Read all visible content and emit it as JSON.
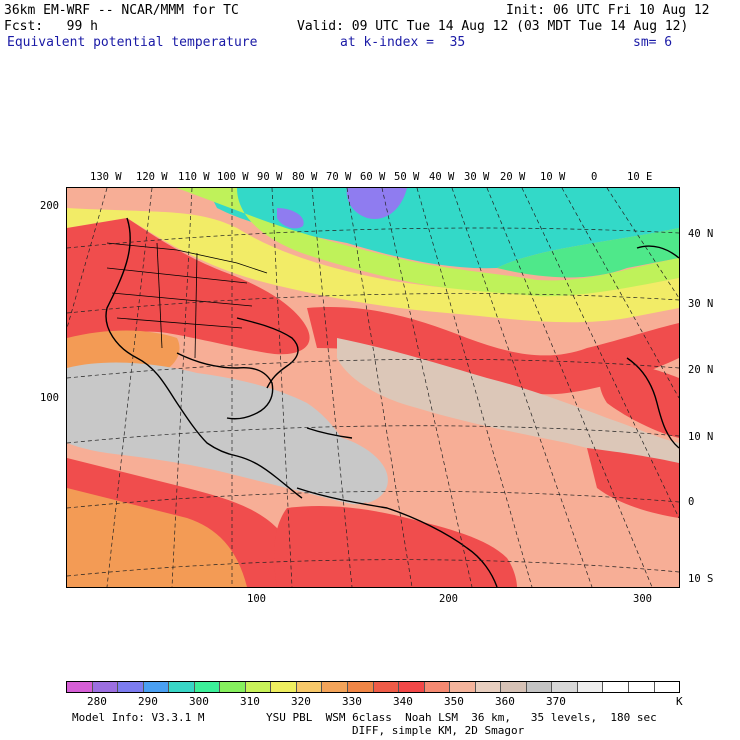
{
  "header": {
    "line1_left": "36km EM-WRF -- NCAR/MMM for TC",
    "line1_right": "Init: 06 UTC Fri 10 Aug 12",
    "line2_left": "Fcst:   99 h",
    "line2_right": "Valid: 09 UTC Tue 14 Aug 12 (03 MDT Tue 14 Aug 12)",
    "field_name": "Equivalent potential temperature",
    "level": "at k-index =  35",
    "smoothing": "sm= 6"
  },
  "map": {
    "top_longitude_labels": [
      "130 W",
      "120 W",
      "110 W",
      "100 W",
      "90 W",
      "80 W",
      "70 W",
      "60 W",
      "50 W",
      "40 W",
      "30 W",
      "20 W",
      "10 W",
      "0",
      "10 E"
    ],
    "right_latitude_labels": [
      "40 N",
      "30 N",
      "20 N",
      "10 N",
      "0",
      "10 S"
    ],
    "left_grid_labels": [
      "200",
      "100"
    ],
    "bottom_grid_labels": [
      "100",
      "200",
      "300"
    ],
    "colors": {
      "cold_pool": "#8f7cf0",
      "cool": "#33d9c8",
      "mild": "#4fe88a",
      "green_yellow": "#bff25a",
      "yellow": "#f2ec67",
      "orange": "#f39b55",
      "red": "#f04d4d",
      "salmon": "#f7ae96",
      "tan": "#dcc7b8",
      "gray": "#c8c8c8",
      "coast": "#000000"
    }
  },
  "legend": {
    "labels": [
      "280",
      "290",
      "300",
      "310",
      "320",
      "330",
      "340",
      "350",
      "360",
      "370"
    ],
    "unit": "K",
    "colors": [
      "#d65fd6",
      "#9c6fe0",
      "#7c7cf0",
      "#4a9ff2",
      "#39d6c6",
      "#3cf09a",
      "#86f05e",
      "#c8f25a",
      "#eeee60",
      "#f7c86a",
      "#f3a45a",
      "#f08646",
      "#ef5c48",
      "#f24848",
      "#f58a72",
      "#f4b49c",
      "#e8cfc0",
      "#d6c2b6",
      "#c4c4c4",
      "#d8d8d8",
      "#eeeeee",
      "#ffffff",
      "#ffffff",
      "#ffffff"
    ]
  },
  "footer": {
    "line1_left": "Model Info: V3.3.1 M",
    "line1_right": "YSU PBL  WSM 6class  Noah LSM  36 km,   35 levels,  180 sec",
    "line2_right": "DIFF, simple KM, 2D Smagor"
  }
}
